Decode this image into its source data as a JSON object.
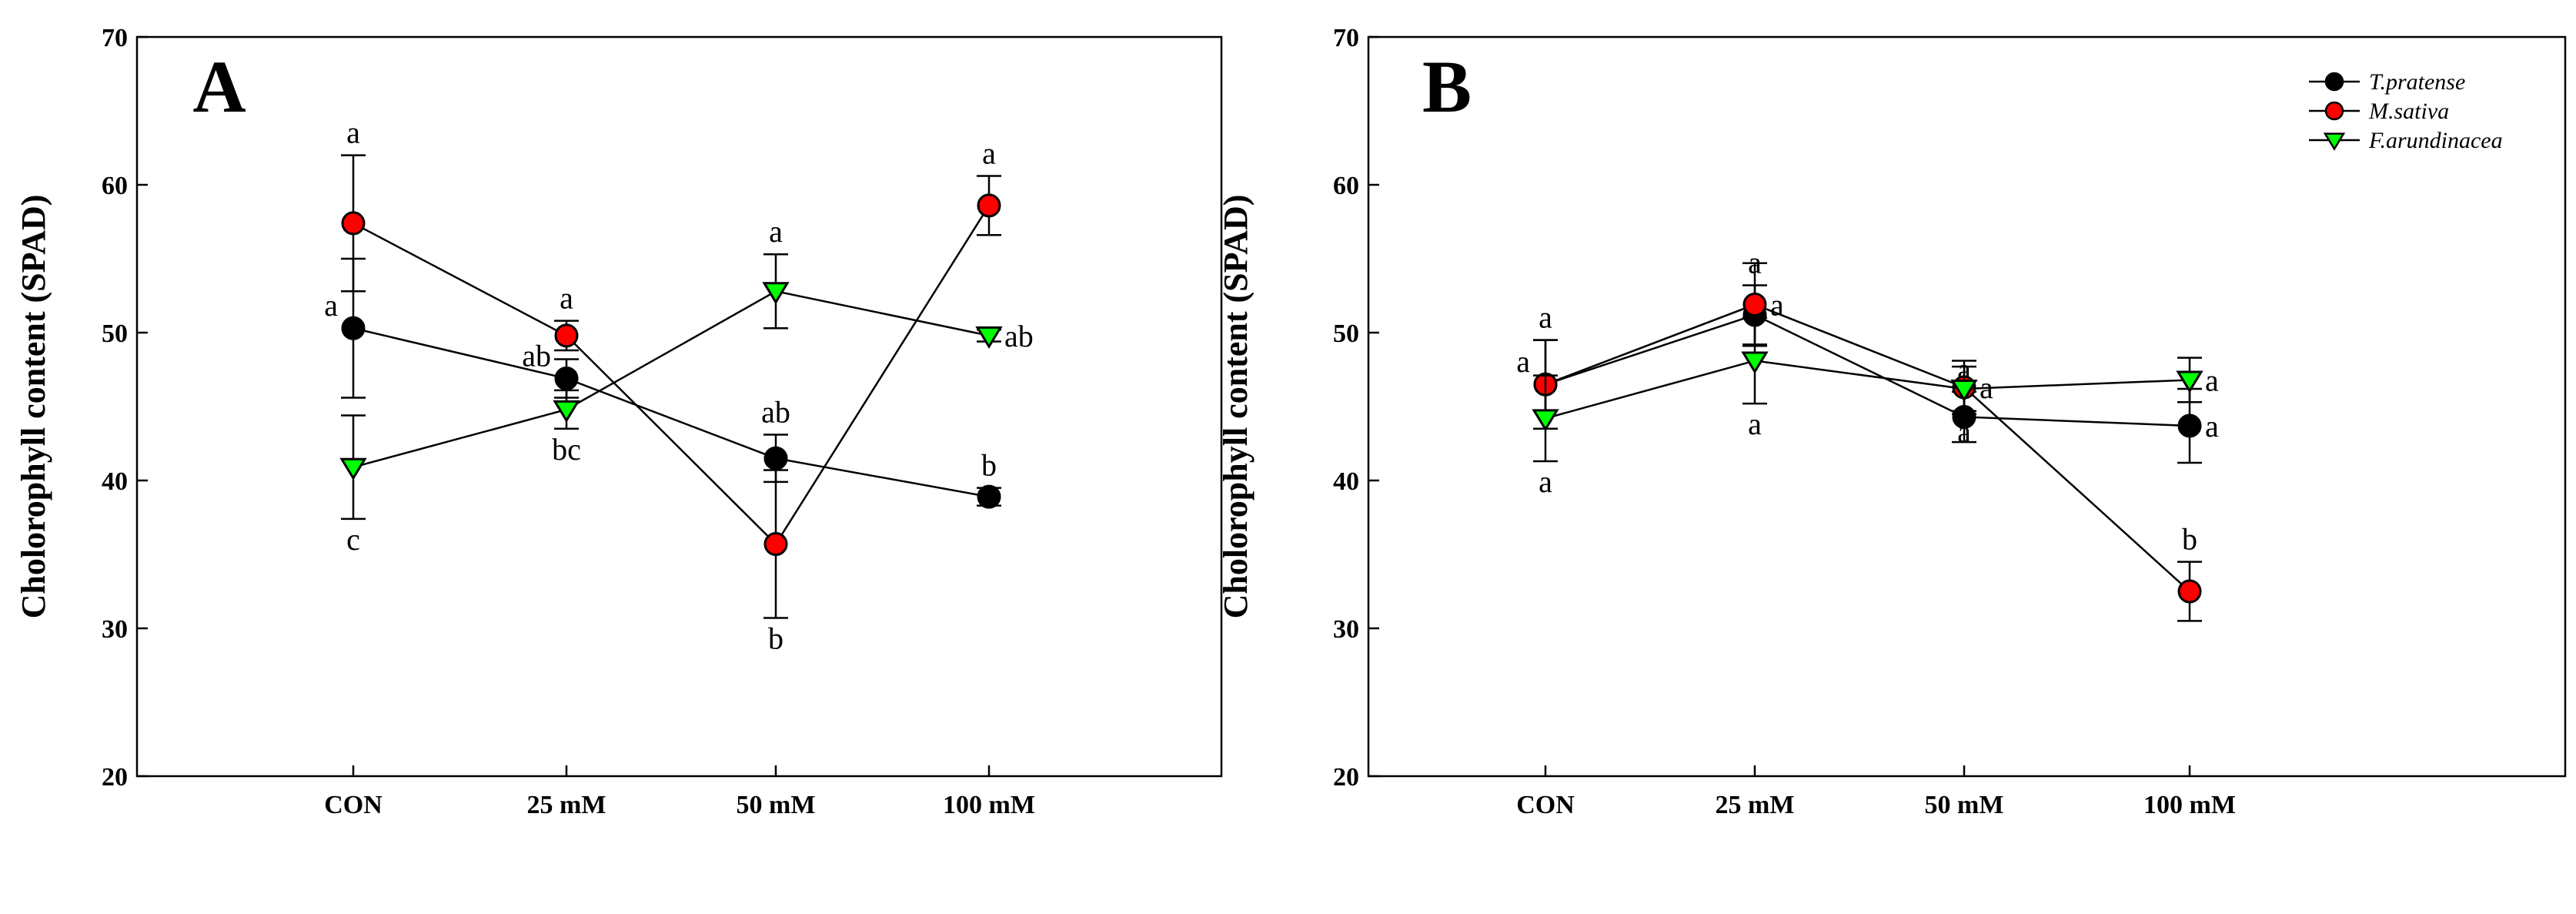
{
  "chart_data": [
    {
      "type": "line",
      "panel": "A",
      "ylabel": "Cholorophyll content (SPAD)",
      "xlabel": "",
      "ylim": [
        20,
        70
      ],
      "yticks": [
        20,
        30,
        40,
        50,
        60,
        70
      ],
      "categories": [
        "CON",
        "25 mM",
        "50 mM",
        "100 mM"
      ],
      "legend": false,
      "series": [
        {
          "name": "T.pratense",
          "marker": "circle",
          "color": "#000000",
          "values": [
            50.3,
            46.9,
            41.5,
            38.9
          ],
          "errors": [
            4.7,
            1.3,
            1.6,
            0.6
          ],
          "letters": [
            "a",
            "ab",
            "ab",
            "b"
          ]
        },
        {
          "name": "M.sativa",
          "marker": "circle",
          "color": "#ff0000",
          "values": [
            57.4,
            49.8,
            35.7,
            58.6
          ],
          "errors": [
            4.6,
            1.0,
            5.0,
            2.0
          ],
          "letters": [
            "a",
            "a",
            "b",
            "a"
          ]
        },
        {
          "name": "F.arundinacea",
          "marker": "triangle-down",
          "color": "#00ff00",
          "values": [
            40.9,
            44.8,
            52.8,
            49.8
          ],
          "errors": [
            3.5,
            1.3,
            2.5,
            0.4
          ],
          "letters": [
            "c",
            "bc",
            "a",
            "ab"
          ]
        }
      ]
    },
    {
      "type": "line",
      "panel": "B",
      "ylabel": "Cholorophyll content (SPAD)",
      "xlabel": "",
      "ylim": [
        20,
        70
      ],
      "yticks": [
        20,
        30,
        40,
        50,
        60,
        70
      ],
      "categories": [
        "CON",
        "25 mM",
        "50 mM",
        "100 mM"
      ],
      "legend": true,
      "legend_position": "top-right",
      "series": [
        {
          "name": "T.pratense",
          "marker": "circle",
          "color": "#000000",
          "values": [
            46.5,
            51.2,
            44.3,
            43.7
          ],
          "errors": [
            3.0,
            2.0,
            1.7,
            2.5
          ],
          "letters": [
            "a",
            "a",
            "a",
            "a"
          ]
        },
        {
          "name": "M.sativa",
          "marker": "circle",
          "color": "#ff0000",
          "values": [
            46.5,
            51.9,
            46.3,
            32.5
          ],
          "errors": [
            3.0,
            2.8,
            1.8,
            2.0
          ],
          "letters": [
            "a",
            "a",
            "a",
            "b"
          ]
        },
        {
          "name": "F.arundinacea",
          "marker": "triangle-down",
          "color": "#00ff00",
          "values": [
            44.2,
            48.1,
            46.2,
            46.8
          ],
          "errors": [
            2.9,
            2.9,
            1.5,
            1.5
          ],
          "letters": [
            "a",
            "a",
            "a",
            "a"
          ]
        }
      ]
    }
  ]
}
